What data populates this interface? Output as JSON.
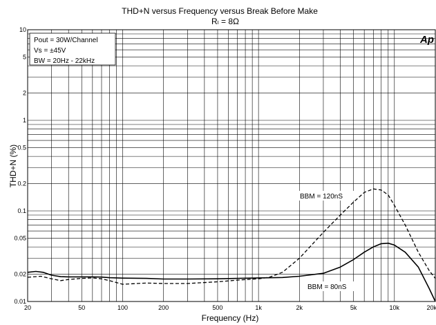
{
  "chart_data": {
    "type": "line",
    "title": "THD+N versus Frequency versus Break Before Make",
    "subtitle": "Rₗ = 8Ω",
    "xlabel": "Frequency (Hz)",
    "ylabel": "THD+N (%)",
    "xscale": "log",
    "yscale": "log",
    "xlim": [
      20,
      20000
    ],
    "ylim": [
      0.01,
      10
    ],
    "grid": true,
    "x_tick_labels": [
      {
        "v": 20,
        "t": "20"
      },
      {
        "v": 50,
        "t": "50"
      },
      {
        "v": 100,
        "t": "100"
      },
      {
        "v": 200,
        "t": "200"
      },
      {
        "v": 500,
        "t": "500"
      },
      {
        "v": 1000,
        "t": "1k"
      },
      {
        "v": 2000,
        "t": "2k"
      },
      {
        "v": 5000,
        "t": "5k"
      },
      {
        "v": 10000,
        "t": "10k"
      },
      {
        "v": 20000,
        "t": "20k"
      }
    ],
    "y_tick_labels": [
      {
        "v": 10,
        "t": "10"
      },
      {
        "v": 5,
        "t": "5"
      },
      {
        "v": 2,
        "t": "2"
      },
      {
        "v": 1,
        "t": "1"
      },
      {
        "v": 0.5,
        "t": "0.5"
      },
      {
        "v": 0.2,
        "t": "0.2"
      },
      {
        "v": 0.1,
        "t": "0.1"
      },
      {
        "v": 0.05,
        "t": "0.05"
      },
      {
        "v": 0.02,
        "t": "0.02"
      },
      {
        "v": 0.01,
        "t": "0.01"
      }
    ],
    "conditions": [
      "Pout = 30W/Channel",
      "Vs = ±45V",
      "BW = 20Hz - 22kHz"
    ],
    "logo": "Ap",
    "series": [
      {
        "name": "BBM = 80nS",
        "style": "solid",
        "color": "#000000",
        "x": [
          20,
          23,
          26,
          30,
          35,
          40,
          50,
          60,
          70,
          80,
          100,
          150,
          200,
          300,
          500,
          700,
          1000,
          1500,
          2000,
          3000,
          4000,
          5000,
          6000,
          7000,
          8000,
          9000,
          10000,
          12000,
          15000,
          18000,
          20000
        ],
        "y": [
          0.021,
          0.0215,
          0.021,
          0.0195,
          0.0188,
          0.0187,
          0.0187,
          0.0187,
          0.0186,
          0.0183,
          0.0181,
          0.018,
          0.0177,
          0.0177,
          0.0178,
          0.018,
          0.0182,
          0.0184,
          0.019,
          0.0205,
          0.024,
          0.029,
          0.035,
          0.04,
          0.0435,
          0.044,
          0.042,
          0.035,
          0.024,
          0.014,
          0.01
        ]
      },
      {
        "name": "BBM = 120nS",
        "style": "dashed",
        "color": "#000000",
        "x": [
          20,
          25,
          30,
          35,
          40,
          50,
          60,
          70,
          80,
          100,
          150,
          200,
          300,
          500,
          700,
          1000,
          1200,
          1500,
          2000,
          3000,
          4000,
          5000,
          6000,
          7000,
          8000,
          9000,
          10000,
          12000,
          15000,
          18000,
          20000
        ],
        "y": [
          0.0185,
          0.019,
          0.0178,
          0.017,
          0.0175,
          0.018,
          0.0182,
          0.0178,
          0.017,
          0.0155,
          0.016,
          0.0158,
          0.0158,
          0.0165,
          0.0172,
          0.0178,
          0.0185,
          0.021,
          0.03,
          0.058,
          0.09,
          0.125,
          0.16,
          0.175,
          0.17,
          0.15,
          0.115,
          0.07,
          0.035,
          0.022,
          0.018
        ]
      }
    ]
  }
}
